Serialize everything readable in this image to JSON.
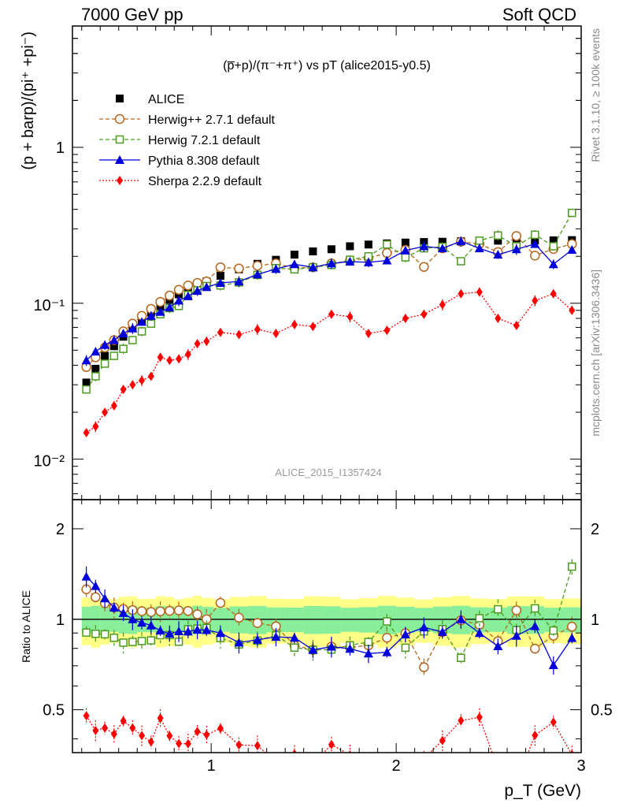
{
  "header": {
    "left": "7000 GeV pp",
    "right": "Soft QCD"
  },
  "side_text": {
    "rivet": "Rivet 3.1.10, ≥ 100k events",
    "mcplots": "mcplots.cern.ch [arXiv:1306.3436]"
  },
  "chart_data": {
    "type": "scatter",
    "title": "(p̅+p)/(π⁻+π⁺) vs pT (alice2015-y0.5)",
    "watermark": "ALICE_2015_I1357424",
    "xlabel": "p_T (GeV)",
    "ylabel": "(p + barp)/(pi⁺ +pi⁻)",
    "ratio_ylabel": "Ratio to ALICE",
    "xlim": [
      0.25,
      3.0
    ],
    "ylim": [
      0.0055,
      6.0
    ],
    "yscale": "log",
    "ratio_ylim": [
      0.36,
      2.5
    ],
    "ratio_yscale": "log",
    "x_ticks": [
      "1",
      "2",
      "3"
    ],
    "y_ticks": [
      "10⁻²",
      "10⁻¹",
      "1"
    ],
    "ratio_ticks": [
      "0.5",
      "1",
      "2"
    ],
    "x": [
      0.325,
      0.375,
      0.425,
      0.475,
      0.525,
      0.575,
      0.625,
      0.675,
      0.725,
      0.775,
      0.825,
      0.875,
      0.925,
      0.975,
      1.05,
      1.15,
      1.25,
      1.35,
      1.45,
      1.55,
      1.65,
      1.75,
      1.85,
      1.95,
      2.05,
      2.15,
      2.25,
      2.35,
      2.45,
      2.55,
      2.65,
      2.75,
      2.85,
      2.95
    ],
    "data_uncertainty": {
      "inner": 0.1,
      "outer": 0.18
    },
    "series": [
      {
        "name": "ALICE",
        "color": "#000000",
        "marker": "square-filled",
        "line": "none",
        "values": [
          0.031,
          0.038,
          0.046,
          0.053,
          0.061,
          0.069,
          0.078,
          0.087,
          0.096,
          0.105,
          0.114,
          0.122,
          0.13,
          0.138,
          0.15,
          0.165,
          0.179,
          0.19,
          0.205,
          0.215,
          0.222,
          0.232,
          0.238,
          0.242,
          0.245,
          0.247,
          0.248,
          0.25,
          0.25,
          0.252,
          0.252,
          0.253,
          0.253,
          0.254
        ]
      },
      {
        "name": "Herwig++ 2.7.1 default",
        "color": "#b5651d",
        "marker": "circle-open",
        "line": "dashed",
        "values": [
          0.039,
          0.045,
          0.052,
          0.058,
          0.066,
          0.074,
          0.083,
          0.092,
          0.102,
          0.112,
          0.122,
          0.13,
          0.135,
          0.138,
          0.17,
          0.167,
          0.174,
          0.18,
          0.168,
          0.17,
          0.18,
          0.187,
          0.195,
          0.21,
          0.22,
          0.171,
          0.225,
          0.248,
          0.24,
          0.213,
          0.27,
          0.202,
          0.223,
          0.24
        ]
      },
      {
        "name": "Herwig 7.2.1 default",
        "color": "#4c9a1f",
        "marker": "square-open",
        "line": "dashed",
        "values": [
          0.028,
          0.034,
          0.041,
          0.046,
          0.051,
          0.058,
          0.066,
          0.074,
          0.085,
          0.093,
          0.096,
          0.113,
          0.121,
          0.129,
          0.13,
          0.136,
          0.152,
          0.168,
          0.165,
          0.17,
          0.176,
          0.19,
          0.2,
          0.238,
          0.197,
          0.225,
          0.23,
          0.186,
          0.252,
          0.272,
          0.232,
          0.275,
          0.232,
          0.38
        ]
      },
      {
        "name": "Pythia 8.308 default",
        "color": "#0000dd",
        "marker": "triangle-filled",
        "line": "solid",
        "values": [
          0.043,
          0.049,
          0.054,
          0.058,
          0.064,
          0.069,
          0.076,
          0.083,
          0.088,
          0.094,
          0.104,
          0.111,
          0.12,
          0.127,
          0.135,
          0.138,
          0.153,
          0.166,
          0.178,
          0.17,
          0.18,
          0.185,
          0.183,
          0.188,
          0.218,
          0.232,
          0.225,
          0.25,
          0.225,
          0.205,
          0.222,
          0.24,
          0.178,
          0.22
        ]
      },
      {
        "name": "Sherpa 2.2.9 default",
        "color": "#ff0000",
        "marker": "diamond-filled",
        "line": "dotted",
        "values": [
          0.0148,
          0.0162,
          0.02,
          0.022,
          0.028,
          0.03,
          0.032,
          0.034,
          0.045,
          0.043,
          0.044,
          0.047,
          0.055,
          0.057,
          0.065,
          0.063,
          0.068,
          0.064,
          0.073,
          0.071,
          0.085,
          0.082,
          0.064,
          0.067,
          0.08,
          0.085,
          0.098,
          0.115,
          0.118,
          0.08,
          0.072,
          0.104,
          0.115,
          0.09
        ]
      }
    ]
  }
}
